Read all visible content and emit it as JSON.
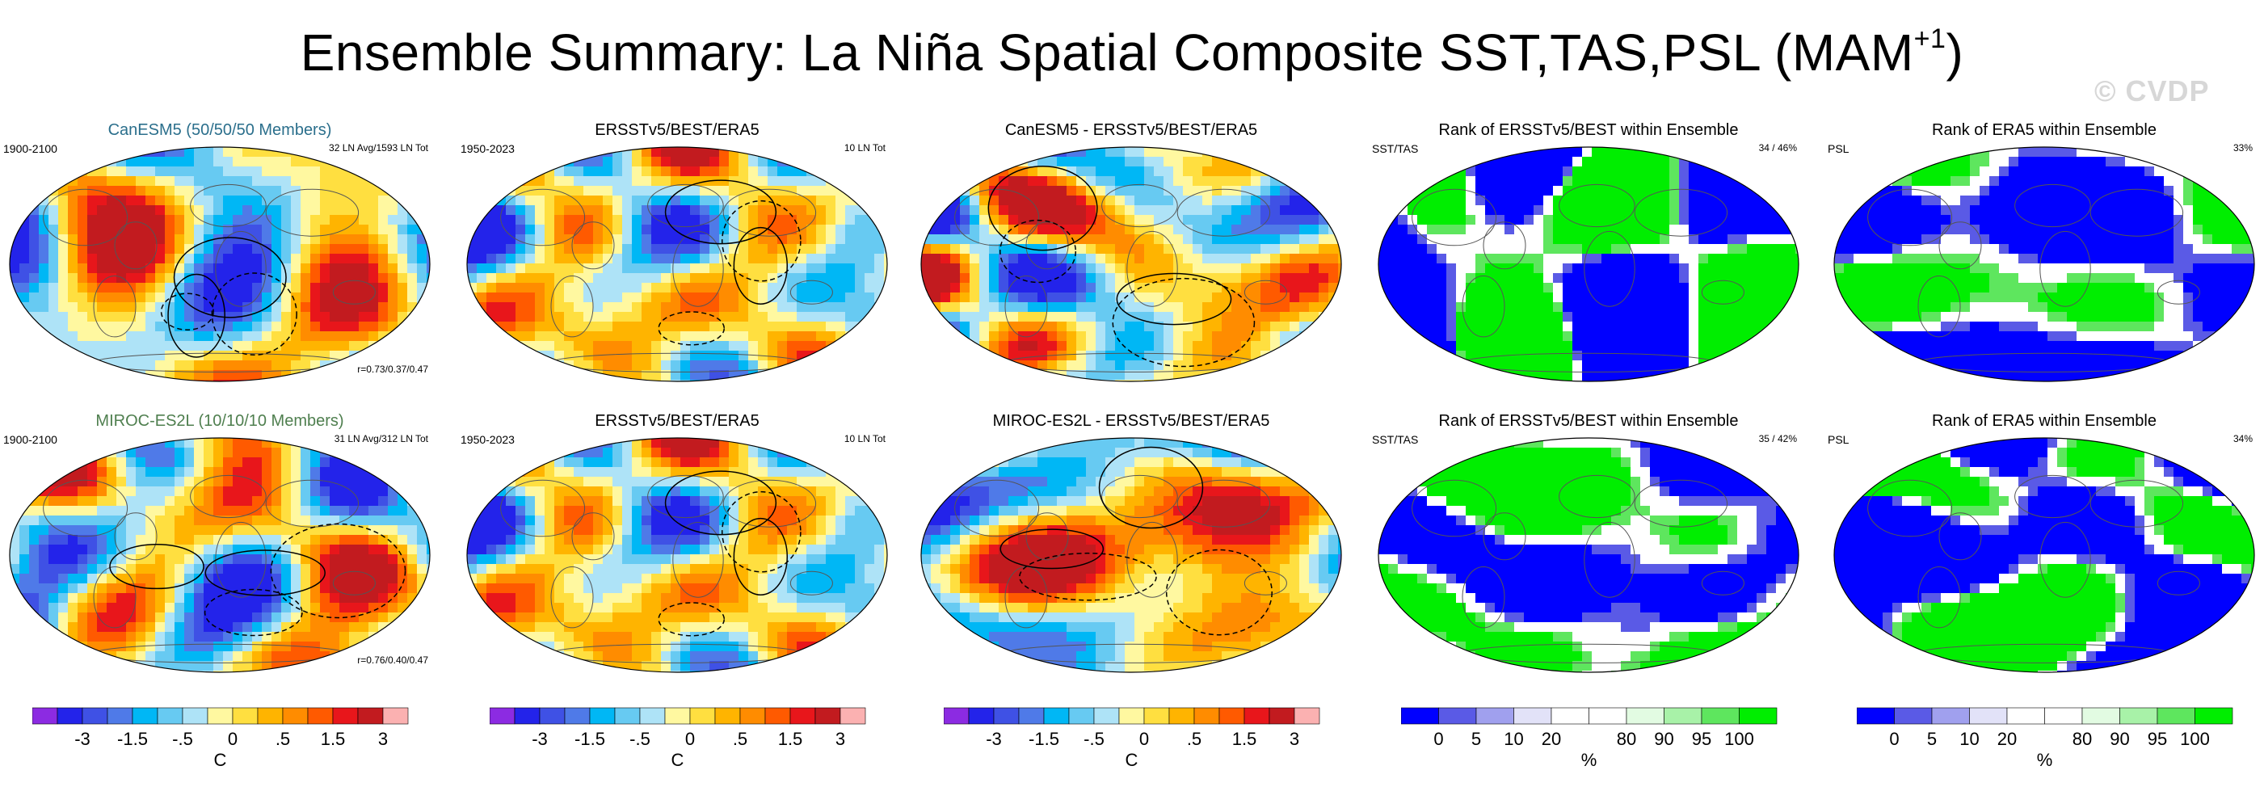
{
  "title_main": "Ensemble Summary: La Niña Spatial Composite SST,TAS,PSL (MAM",
  "title_sup": "+1",
  "title_end": ")",
  "watermark": "© CVDP",
  "panels": [
    {
      "title": "CanESM5 (50/50/50 Members)",
      "title_color": "#2b6f8c",
      "left": "1900-2100",
      "right": "32 LN Avg/1593 LN Tot",
      "stat": "r=0.73/0.37/0.47",
      "kind": "anom",
      "seed": 11
    },
    {
      "title": "ERSSTv5/BEST/ERA5",
      "title_color": "#000000",
      "left": "1950-2023",
      "right": "10 LN Tot",
      "stat": "",
      "kind": "anom",
      "seed": 23
    },
    {
      "title": "CanESM5 - ERSSTv5/BEST/ERA5",
      "title_color": "#000000",
      "left": "",
      "right": "",
      "stat": "",
      "kind": "anom",
      "seed": 37
    },
    {
      "title": "Rank of ERSSTv5/BEST within Ensemble",
      "title_color": "#000000",
      "left": "SST/TAS",
      "right": "34 /  46%",
      "stat": "",
      "kind": "rank",
      "seed": 41
    },
    {
      "title": "Rank of ERA5 within Ensemble",
      "title_color": "#000000",
      "left": "PSL",
      "right": "33%",
      "stat": "",
      "kind": "rankpsl",
      "seed": 53
    },
    {
      "title": "MIROC-ES2L (10/10/10 Members)",
      "title_color": "#4f7f4f",
      "left": "1900-2100",
      "right": "31 LN Avg/312 LN Tot",
      "stat": "r=0.76/0.40/0.47",
      "kind": "anom",
      "seed": 61
    },
    {
      "title": "ERSSTv5/BEST/ERA5",
      "title_color": "#000000",
      "left": "1950-2023",
      "right": "10 LN Tot",
      "stat": "",
      "kind": "anom",
      "seed": 23
    },
    {
      "title": "MIROC-ES2L - ERSSTv5/BEST/ERA5",
      "title_color": "#000000",
      "left": "",
      "right": "",
      "stat": "",
      "kind": "anom",
      "seed": 79
    },
    {
      "title": "Rank of ERSSTv5/BEST within Ensemble",
      "title_color": "#000000",
      "left": "SST/TAS",
      "right": "35 /  42%",
      "stat": "",
      "kind": "rank",
      "seed": 83
    },
    {
      "title": "Rank of ERA5 within Ensemble",
      "title_color": "#000000",
      "left": "PSL",
      "right": "34%",
      "stat": "",
      "kind": "rankpsl",
      "seed": 97
    }
  ],
  "colorbars": {
    "anom": {
      "colors": [
        "#8c2be2",
        "#2323ea",
        "#3f51e5",
        "#4f7ae8",
        "#00b7f5",
        "#67caf2",
        "#aee3f7",
        "#fff8a0",
        "#ffdf40",
        "#ffb400",
        "#ff8c00",
        "#ff5a00",
        "#e8161b",
        "#c21b1f",
        "#fbb1b1"
      ],
      "labels": [
        "-3",
        "-1.5",
        "-.5",
        "0",
        ".5",
        "1.5",
        "3"
      ],
      "unit": "C"
    },
    "rank": {
      "colors": [
        "#0000ff",
        "#5a5ae6",
        "#a0a0ee",
        "#e2e2f8",
        "#ffffff",
        "#ffffff",
        "#e2fbe2",
        "#a8f2a8",
        "#5ee65e",
        "#00ee00"
      ],
      "labels": [
        "0",
        "5",
        "10",
        "20",
        "80",
        "90",
        "95",
        "100"
      ],
      "unit": "%"
    }
  }
}
